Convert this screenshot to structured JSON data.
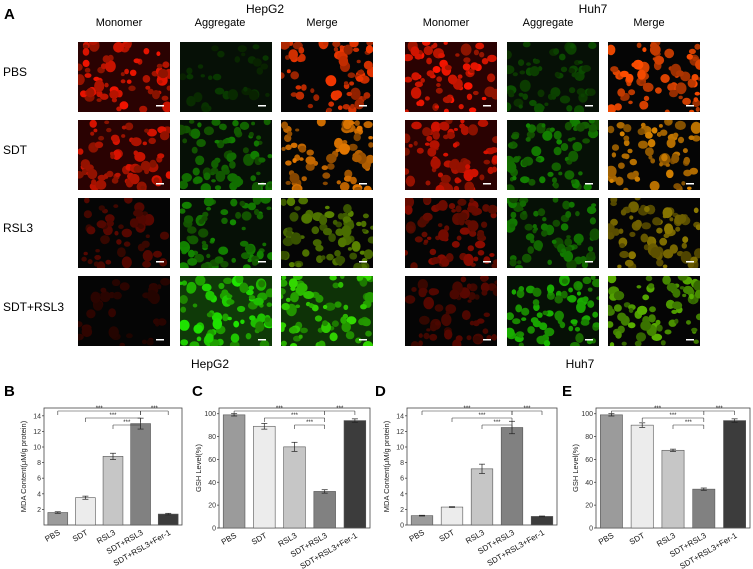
{
  "figure": {
    "panel_a": {
      "letter": "A",
      "groups": [
        {
          "title": "HepG2",
          "columns": [
            "Monomer",
            "Aggregate",
            "Merge"
          ]
        },
        {
          "title": "Huh7",
          "columns": [
            "Monomer",
            "Aggregate",
            "Merge"
          ]
        }
      ],
      "rows": [
        "PBS",
        "SDT",
        "RSL3",
        "SDT+RSL3"
      ]
    },
    "section_titles": {
      "left": "HepG2",
      "right": "Huh7"
    }
  },
  "chart_data": [
    {
      "letter": "B",
      "type": "bar",
      "categories": [
        "PBS",
        "SDT",
        "RSL3",
        "SDT+RSL3",
        "SDT+RSL3+Fer-1"
      ],
      "values": [
        1.6,
        3.5,
        8.8,
        13.0,
        1.4
      ],
      "errors": [
        0.1,
        0.2,
        0.4,
        0.7,
        0.1
      ],
      "ylabel": "MDA Content(μM/g  protein)",
      "ylim": [
        0,
        15
      ],
      "yticks": [
        "2",
        "4",
        "6",
        "8",
        "10",
        "12",
        "14"
      ],
      "bar_colors": [
        "#9b9b9b",
        "#ececec",
        "#c6c6c6",
        "#818181",
        "#3c3c3c"
      ],
      "significance": [
        "***",
        "***",
        "***",
        "***"
      ]
    },
    {
      "letter": "C",
      "type": "bar",
      "categories": [
        "PBS",
        "SDT",
        "RSL3",
        "SDT+RSL3",
        "SDT+RSL3+Fer-1"
      ],
      "values": [
        99,
        89,
        71,
        32,
        94
      ],
      "errors": [
        1,
        2.5,
        4,
        1.5,
        1.5
      ],
      "ylabel": "GSH Level(%)",
      "ylim": [
        0,
        105
      ],
      "yticks": [
        "0",
        "20",
        "40",
        "60",
        "80",
        "100"
      ],
      "bar_colors": [
        "#9b9b9b",
        "#ececec",
        "#c6c6c6",
        "#818181",
        "#3c3c3c"
      ],
      "significance": [
        "***",
        "***",
        "***",
        "***"
      ]
    },
    {
      "letter": "D",
      "type": "bar",
      "categories": [
        "PBS",
        "SDT",
        "RSL3",
        "SDT+RSL3",
        "SDT+RSL3+Fer-1"
      ],
      "values": [
        1.2,
        2.3,
        7.2,
        12.5,
        1.1
      ],
      "errors": [
        0.05,
        0.05,
        0.6,
        0.8,
        0.05
      ],
      "ylabel": "MDA Content(μM/g  protein)",
      "ylim": [
        0,
        15
      ],
      "yticks": [
        "0",
        "2",
        "4",
        "6",
        "8",
        "10",
        "12",
        "14"
      ],
      "bar_colors": [
        "#9b9b9b",
        "#ececec",
        "#c6c6c6",
        "#818181",
        "#3c3c3c"
      ],
      "significance": [
        "***",
        "***",
        "***",
        "***"
      ]
    },
    {
      "letter": "E",
      "type": "bar",
      "categories": [
        "PBS",
        "SDT",
        "RSL3",
        "SDT+RSL3",
        "SDT+RSL3+Fer-1"
      ],
      "values": [
        99,
        90,
        68,
        34,
        94
      ],
      "errors": [
        1,
        2,
        1,
        1,
        1.5
      ],
      "ylabel": "GSH Level(%)",
      "ylim": [
        0,
        105
      ],
      "yticks": [
        "0",
        "20",
        "40",
        "60",
        "80",
        "100"
      ],
      "bar_colors": [
        "#9b9b9b",
        "#ececec",
        "#c6c6c6",
        "#818181",
        "#3c3c3c"
      ],
      "significance": [
        "***",
        "***",
        "***",
        "***"
      ]
    }
  ]
}
